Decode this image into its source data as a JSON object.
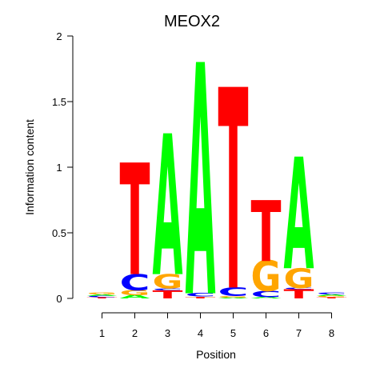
{
  "chart_data": {
    "type": "sequence-logo",
    "title": "MEOX2",
    "xlabel": "Position",
    "ylabel": "Information content",
    "ylim": [
      0,
      2
    ],
    "yticks": [
      "0",
      "0.5",
      "1",
      "1.5",
      "2"
    ],
    "positions": [
      "1",
      "2",
      "3",
      "4",
      "5",
      "6",
      "7",
      "8"
    ],
    "colors": {
      "A": "#00ff00",
      "C": "#0000ff",
      "G": "#ffa500",
      "T": "#ff0000"
    },
    "stacks": [
      [
        {
          "l": "T",
          "h": 0.008
        },
        {
          "l": "C",
          "h": 0.01
        },
        {
          "l": "A",
          "h": 0.012
        },
        {
          "l": "G",
          "h": 0.015
        }
      ],
      [
        {
          "l": "A",
          "h": 0.025
        },
        {
          "l": "G",
          "h": 0.04
        },
        {
          "l": "C",
          "h": 0.12
        },
        {
          "l": "T",
          "h": 0.84
        }
      ],
      [
        {
          "l": "T",
          "h": 0.06
        },
        {
          "l": "C",
          "h": 0.015
        },
        {
          "l": "G",
          "h": 0.11
        },
        {
          "l": "A",
          "h": 1.06
        }
      ],
      [
        {
          "l": "T",
          "h": 0.01
        },
        {
          "l": "G",
          "h": 0.005
        },
        {
          "l": "C",
          "h": 0.025
        },
        {
          "l": "A",
          "h": 1.74
        }
      ],
      [
        {
          "l": "A",
          "h": 0.006
        },
        {
          "l": "G",
          "h": 0.012
        },
        {
          "l": "C",
          "h": 0.065
        },
        {
          "l": "T",
          "h": 1.51
        }
      ],
      [
        {
          "l": "A",
          "h": 0.01
        },
        {
          "l": "C",
          "h": 0.045
        },
        {
          "l": "G",
          "h": 0.23
        },
        {
          "l": "T",
          "h": 0.46
        }
      ],
      [
        {
          "l": "T",
          "h": 0.07
        },
        {
          "l": "C",
          "h": 0.01
        },
        {
          "l": "G",
          "h": 0.15
        },
        {
          "l": "A",
          "h": 0.84
        }
      ],
      [
        {
          "l": "T",
          "h": 0.008
        },
        {
          "l": "G",
          "h": 0.01
        },
        {
          "l": "A",
          "h": 0.012
        },
        {
          "l": "C",
          "h": 0.015
        }
      ]
    ]
  }
}
